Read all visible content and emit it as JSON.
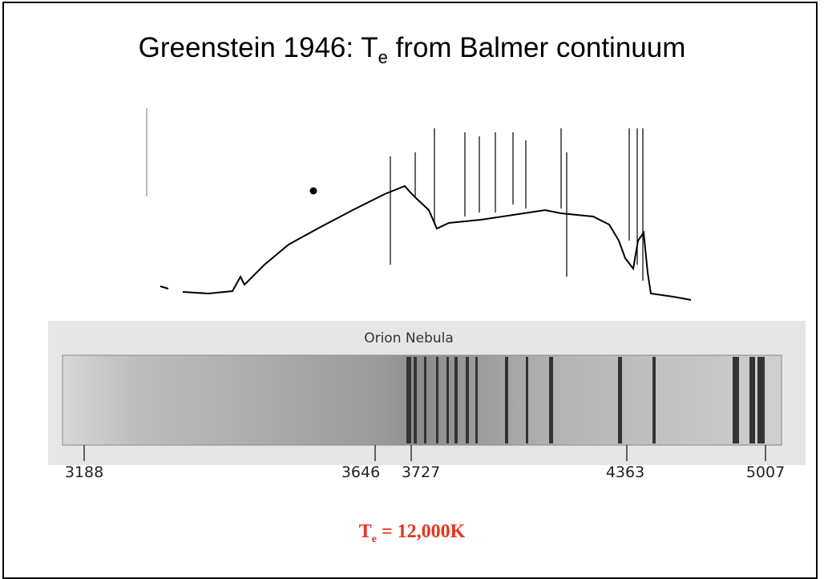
{
  "slide": {
    "title": {
      "main": "Greenstein 1946: T",
      "subscript": "e",
      "rest": " from Balmer continuum"
    },
    "spectrum": {
      "label": "Orion Nebula",
      "wavelengths": [
        "3188",
        "3646",
        "3727",
        "4363",
        "5007"
      ]
    },
    "result": {
      "main": "T",
      "subscript": "e",
      "rest": " = 12,000K"
    }
  }
}
